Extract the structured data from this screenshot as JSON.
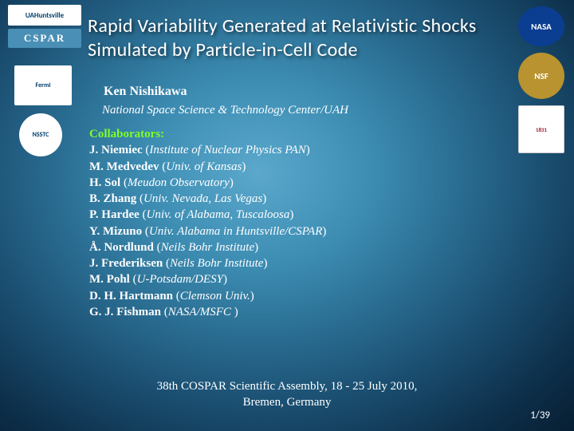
{
  "title": "Rapid Variability Generated at Relativistic Shocks Simulated by Particle-in-Cell Code",
  "author": "Ken Nishikawa",
  "affiliation": "National Space Science & Technology Center/UAH",
  "collab_label": "Collaborators:",
  "collaborators": [
    {
      "name": "J. Niemiec",
      "inst": "Institute of Nuclear Physics PAN"
    },
    {
      "name": "M. Medvedev",
      "inst": "Univ. of Kansas"
    },
    {
      "name": "H. Sol",
      "inst": "Meudon Observatory"
    },
    {
      "name": "B. Zhang",
      "inst": "Univ. Nevada, Las Vegas"
    },
    {
      "name": "P. Hardee",
      "inst": "Univ. of Alabama, Tuscaloosa"
    },
    {
      "name": "Y. Mizuno",
      "inst": "Univ. Alabama in Huntsville/CSPAR"
    },
    {
      "name": "Å. Nordlund",
      "inst": "Neils Bohr Institute"
    },
    {
      "name": "J. Frederiksen",
      "inst": "Neils Bohr Institute"
    },
    {
      "name": "M. Pohl",
      "inst": "U-Potsdam/DESY"
    },
    {
      "name": "D. H. Hartmann",
      "inst": "Clemson Univ."
    },
    {
      "name": "G. J. Fishman",
      "inst": "NASA/MSFC "
    }
  ],
  "conference_line1": "38th COSPAR Scientific Assembly, 18 - 25 July 2010,",
  "conference_line2": "Bremen, Germany",
  "page": "1/39",
  "logos": {
    "uah": "UAHuntsville",
    "cspar": "CSPAR",
    "fermi": "Fermi",
    "nsstc": "NSSTC",
    "nasa": "NASA",
    "nsf": "NSF",
    "ua": "1831"
  }
}
